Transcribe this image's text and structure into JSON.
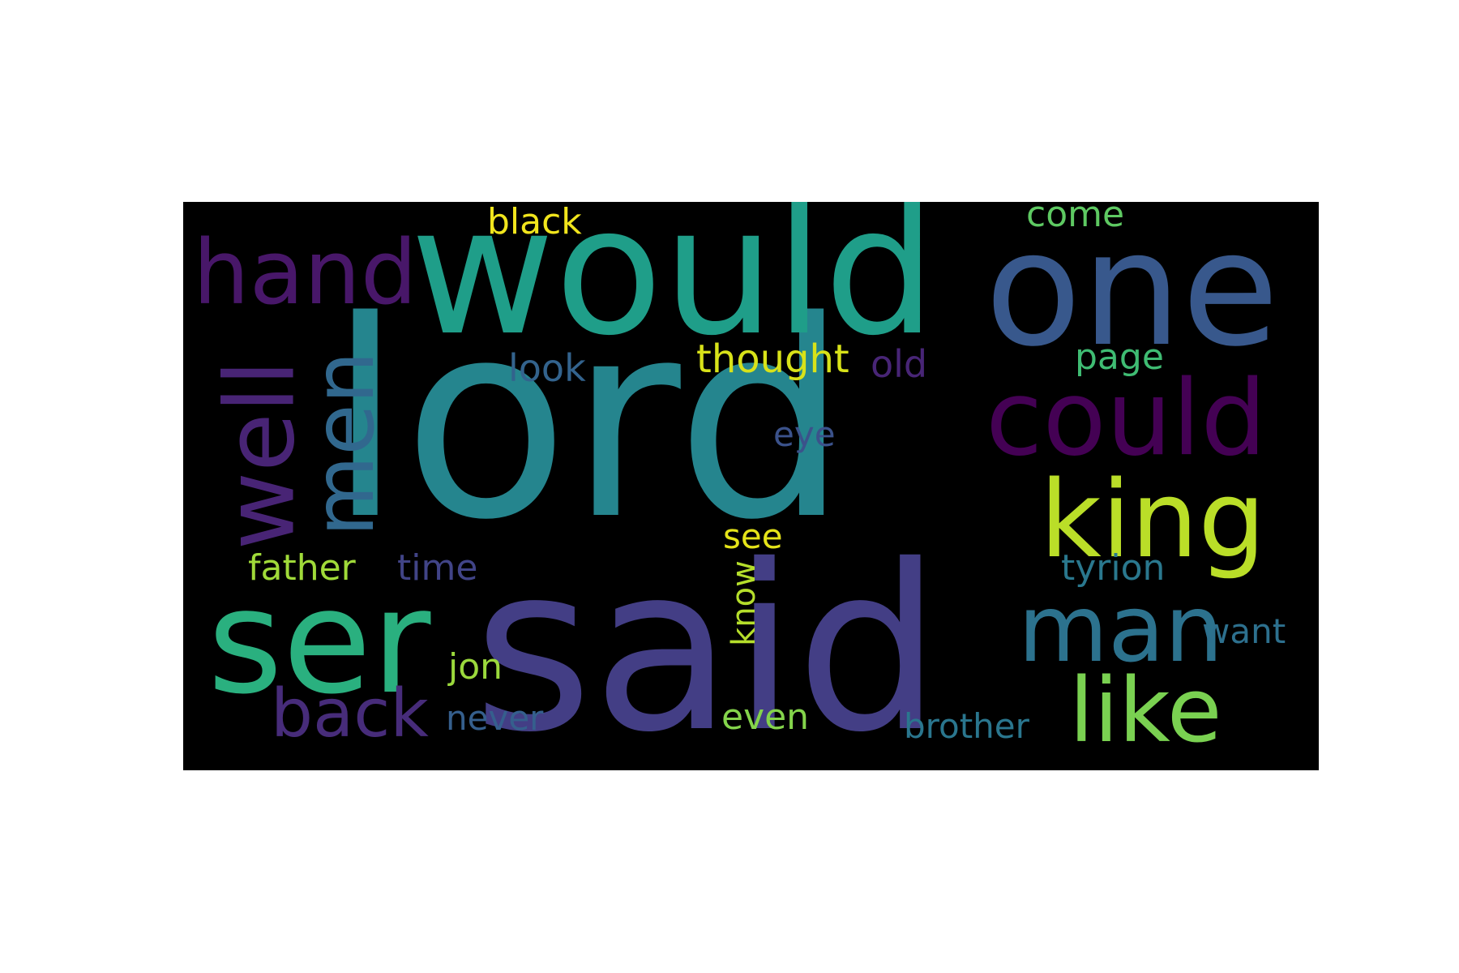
{
  "words": [
    {
      "text": "lord",
      "color": "#25858e"
    },
    {
      "text": "said",
      "color": "#433e85"
    },
    {
      "text": "would",
      "color": "#1f9e89"
    },
    {
      "text": "one",
      "color": "#38588c"
    },
    {
      "text": "ser",
      "color": "#2ab07f"
    },
    {
      "text": "hand",
      "color": "#481769"
    },
    {
      "text": "could",
      "color": "#440154"
    },
    {
      "text": "king",
      "color": "#bade28"
    },
    {
      "text": "man",
      "color": "#2c728e"
    },
    {
      "text": "like",
      "color": "#7ad151"
    },
    {
      "text": "well",
      "color": "#482475"
    },
    {
      "text": "men",
      "color": "#31688e"
    },
    {
      "text": "back",
      "color": "#472c7a"
    },
    {
      "text": "thought",
      "color": "#d8e219"
    },
    {
      "text": "old",
      "color": "#482576"
    },
    {
      "text": "look",
      "color": "#33638d"
    },
    {
      "text": "page",
      "color": "#3fbc73"
    },
    {
      "text": "black",
      "color": "#f1e51d"
    },
    {
      "text": "come",
      "color": "#5ec962"
    },
    {
      "text": "eye",
      "color": "#3b528b"
    },
    {
      "text": "see",
      "color": "#e5e419"
    },
    {
      "text": "father",
      "color": "#a0da39"
    },
    {
      "text": "time",
      "color": "#414487"
    },
    {
      "text": "tyrion",
      "color": "#2a788e"
    },
    {
      "text": "know",
      "color": "#b5de2b"
    },
    {
      "text": "want",
      "color": "#2d708e"
    },
    {
      "text": "jon",
      "color": "#9bd93c"
    },
    {
      "text": "never",
      "color": "#355f8d"
    },
    {
      "text": "even",
      "color": "#84d44b"
    },
    {
      "text": "brother",
      "color": "#2a768e"
    }
  ]
}
